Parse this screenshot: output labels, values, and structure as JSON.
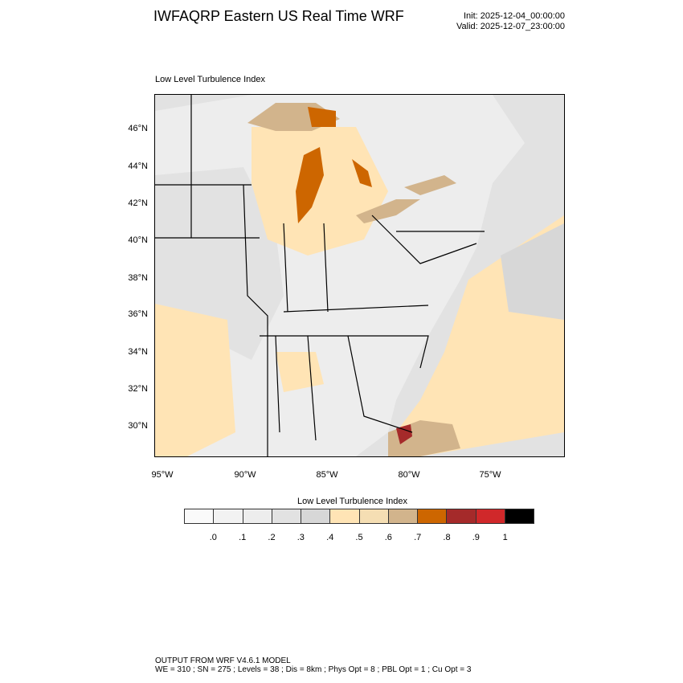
{
  "header": {
    "title": "IWFAQRP Eastern US Real Time WRF",
    "init": "Init: 2025-12-04_00:00:00",
    "valid": "Valid: 2025-12-07_23:00:00",
    "subtitle": "Low Level Turbulence Index"
  },
  "map": {
    "lat_labels": [
      "46°N",
      "44°N",
      "42°N",
      "40°N",
      "38°N",
      "36°N",
      "34°N",
      "32°N",
      "30°N"
    ],
    "lon_labels": [
      "95°W",
      "90°W",
      "85°W",
      "80°W",
      "75°W"
    ]
  },
  "colorbar": {
    "title": "Low Level Turbulence Index",
    "colors": [
      "#fafafa",
      "#f2f2f2",
      "#ededed",
      "#e2e2e2",
      "#d7d7d7",
      "#ffe4b5",
      "#f5deb3",
      "#d2b48c",
      "#cd6600",
      "#a52a2a",
      "#d0282a",
      "#000000"
    ],
    "labels": [
      ".0",
      ".1",
      ".2",
      ".3",
      ".4",
      ".5",
      ".6",
      ".7",
      ".8",
      ".9",
      "1"
    ]
  },
  "footer": {
    "line1": "OUTPUT FROM WRF V4.6.1 MODEL",
    "line2": "WE = 310 ; SN = 275 ; Levels = 38 ; Dis = 8km ; Phys Opt = 8 ; PBL Opt = 1 ; Cu Opt = 3"
  }
}
